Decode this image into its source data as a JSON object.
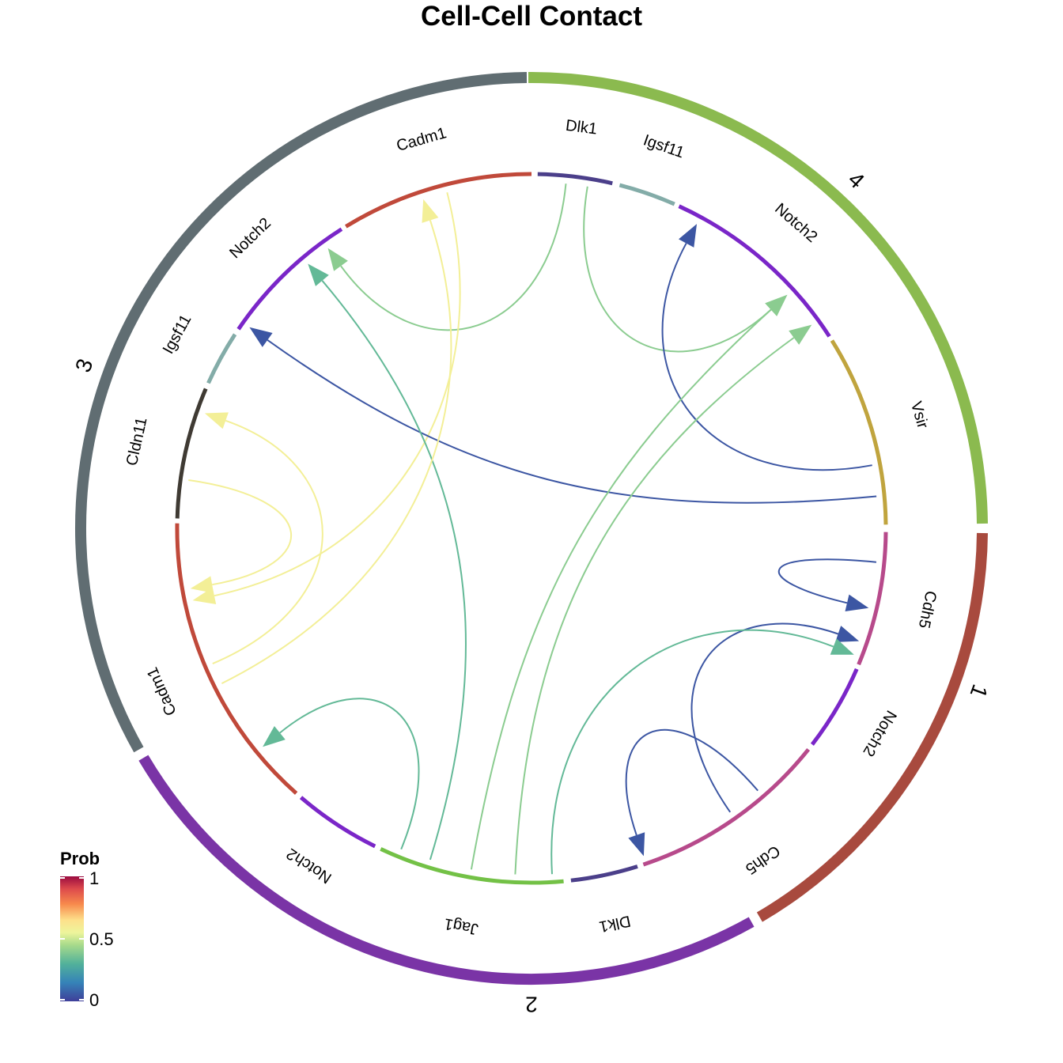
{
  "title": "Cell-Cell Contact",
  "clusters": [
    {
      "id": "4",
      "label": "4",
      "color": "#8bba4f"
    },
    {
      "id": "1",
      "label": "1",
      "color": "#a84a3e"
    },
    {
      "id": "2",
      "label": "2",
      "color": "#7a34a6"
    },
    {
      "id": "3",
      "label": "3",
      "color": "#606d72"
    }
  ],
  "genes": [
    {
      "label": "Dlk1",
      "cluster": "4",
      "color": "#4b3f8a"
    },
    {
      "label": "Igsf11",
      "cluster": "4",
      "color": "#83aca8"
    },
    {
      "label": "Notch2",
      "cluster": "4",
      "color": "#7a26c8"
    },
    {
      "label": "Vsir",
      "cluster": "4",
      "color": "#c0a43e"
    },
    {
      "label": "Cdh5",
      "cluster": "1",
      "color": "#b74a8b"
    },
    {
      "label": "Notch2",
      "cluster": "1",
      "color": "#7a26c8"
    },
    {
      "label": "Cdh5",
      "cluster": "2",
      "color": "#b74a8b"
    },
    {
      "label": "Dlk1",
      "cluster": "2",
      "color": "#4b3f8a"
    },
    {
      "label": "Jag1",
      "cluster": "2",
      "color": "#73c146"
    },
    {
      "label": "Notch2",
      "cluster": "3",
      "color": "#7a26c8"
    },
    {
      "label": "Cadm1",
      "cluster": "3",
      "color": "#c0493a"
    },
    {
      "label": "Cldn11",
      "cluster": "3",
      "color": "#3f3a33"
    },
    {
      "label": "Igsf11",
      "cluster": "3",
      "color": "#83aca8"
    },
    {
      "label": "Notch2",
      "cluster": "3",
      "color": "#7a26c8"
    },
    {
      "label": "Cadm1",
      "cluster": "4",
      "color": "#c0493a"
    }
  ],
  "chart_data": {
    "type": "chord",
    "title": "Cell-Cell Contact",
    "color_legend": {
      "title": "Prob",
      "ticks": [
        "0",
        "0.5",
        "1"
      ],
      "range": [
        0,
        1
      ],
      "palette": "Spectral"
    },
    "links": [
      {
        "source": "Dlk1 (4)",
        "target": "Notch2 (3)",
        "prob": 0.4
      },
      {
        "source": "Dlk1 (4)",
        "target": "Notch2 (4)",
        "prob": 0.4
      },
      {
        "source": "Cadm1 (4)",
        "target": "Cadm1 (3)",
        "prob": 0.58
      },
      {
        "source": "Vsir (4)",
        "target": "Igsf11 (4)",
        "prob": 0.05
      },
      {
        "source": "Vsir (4)",
        "target": "Igsf11 (3)",
        "prob": 0.05
      },
      {
        "source": "Cdh5 (1)",
        "target": "Cdh5 (2)",
        "prob": 0.05
      },
      {
        "source": "Cdh5 (2)",
        "target": "Cdh5 (1)",
        "prob": 0.05
      },
      {
        "source": "Cdh5 (2)",
        "target": "Cdh5 (2)",
        "prob": 0.05
      },
      {
        "source": "Dlk1 (2)",
        "target": "Notch2 (1)",
        "prob": 0.33
      },
      {
        "source": "Dlk1 (2)",
        "target": "Notch2 (4)",
        "prob": 0.4
      },
      {
        "source": "Jag1 (2)",
        "target": "Notch2 (4)",
        "prob": 0.4
      },
      {
        "source": "Jag1 (2)",
        "target": "Notch2 (3)",
        "prob": 0.33
      },
      {
        "source": "Jag1 (2)",
        "target": "Notch2 (3)",
        "prob": 0.33
      },
      {
        "source": "Cadm1 (3)",
        "target": "Cadm1 (3)",
        "prob": 0.58
      },
      {
        "source": "Cadm1 (3)",
        "target": "Cadm1 (4)",
        "prob": 0.58
      },
      {
        "source": "Cadm1 (3)",
        "target": "Cadm1 (4)",
        "prob": 0.58
      }
    ]
  }
}
